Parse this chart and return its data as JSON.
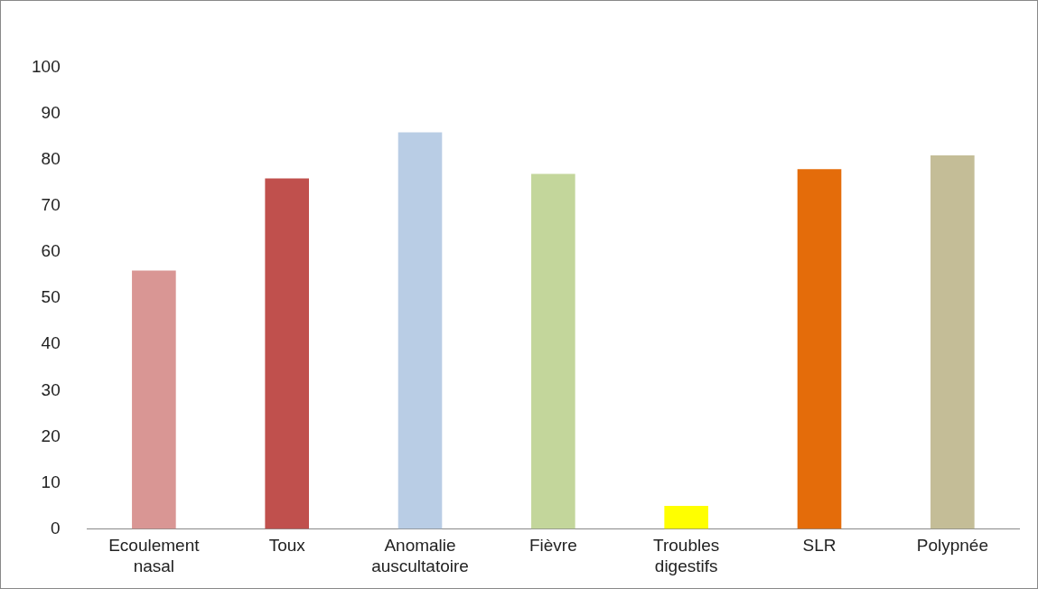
{
  "chart_data": {
    "type": "bar",
    "categories": [
      "Ecoulement nasal",
      "Toux",
      "Anomalie auscultatoire",
      "Fièvre",
      "Troubles digestifs",
      "SLR",
      "Polypnée"
    ],
    "values": [
      56,
      76,
      86,
      77,
      5,
      78,
      81
    ],
    "colors": [
      "#d99694",
      "#c0504d",
      "#b9cde5",
      "#c3d69b",
      "#ffff00",
      "#e46c0a",
      "#c4bd97"
    ],
    "ylim": [
      0,
      100
    ],
    "yticks": [
      0,
      10,
      20,
      30,
      40,
      50,
      60,
      70,
      80,
      90,
      100
    ],
    "grid": false,
    "legend": false
  }
}
